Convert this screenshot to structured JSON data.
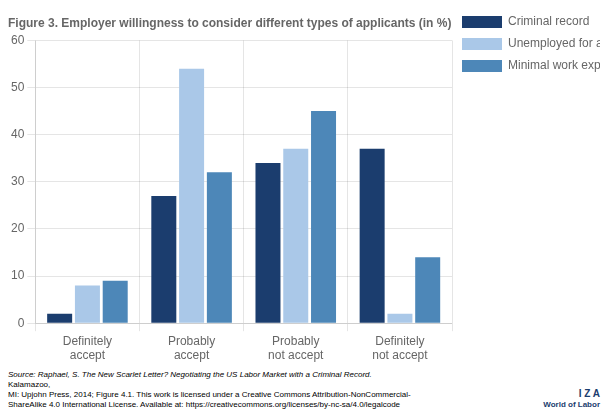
{
  "chart_data": {
    "type": "bar",
    "title": "Figure 3. Employer willingness to consider different types of applicants (in %)",
    "categories": [
      "Definitely\naccept",
      "Probably\naccept",
      "Probably\nnot accept",
      "Definitely\nnot accept"
    ],
    "series": [
      {
        "name": "Criminal record",
        "color": "#1b3d6e",
        "values": [
          2,
          27,
          34,
          37
        ]
      },
      {
        "name": "Unemployed for\nan year or more",
        "color": "#aac8e8",
        "values": [
          8,
          54,
          37,
          2
        ]
      },
      {
        "name": "Minimal work\nexperience",
        "color": "#4d87b8",
        "values": [
          9,
          32,
          45,
          14
        ]
      }
    ],
    "ylim": [
      0,
      60
    ],
    "yticks": [
      0,
      10,
      20,
      30,
      40,
      50,
      60
    ],
    "grid": true,
    "legend": "right",
    "annotations": [
      "Source: Raphael, S. The New Scarlet Letter? Negotiating the US Labor Market with a Criminal Record.",
      "Kalamazoo,\nMI: Upjohn Press, 2014; Figure 4.1. This work is licensed under a Creative Commons Attribution-NonCommercial-\nShareAlike 4.0 International License. Available at: https://creativecommons.org/licenses/by-nc-sa/4.0/legalcode",
      "I Z A",
      "World of Labor"
    ]
  }
}
